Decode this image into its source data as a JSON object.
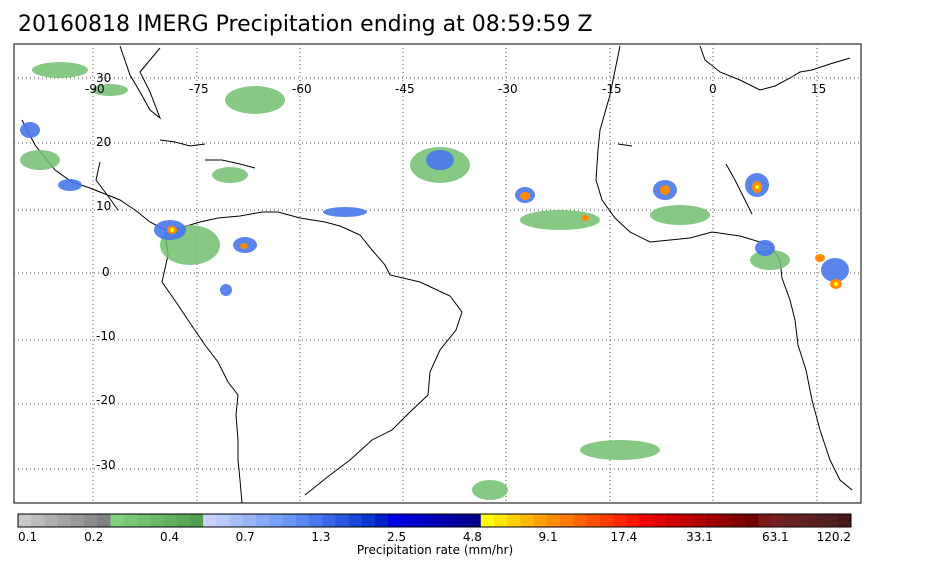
{
  "title": "20160818 IMERG Precipitation ending at 08:59:59 Z",
  "map": {
    "lon_labels": [
      "-90",
      "-75",
      "-60",
      "-45",
      "-30",
      "-15",
      "0",
      "15"
    ],
    "lat_labels": [
      "30",
      "20",
      "10",
      "0",
      "-10",
      "-20",
      "-30"
    ]
  },
  "colorbar": {
    "label": "Precipitation rate (mm/hr)",
    "tick_labels": [
      "0.1",
      "0.2",
      "0.4",
      "0.7",
      "1.3",
      "2.5",
      "4.8",
      "9.1",
      "17.4",
      "33.1",
      "63.1",
      "120.2"
    ],
    "colors": [
      "#c8c8c8",
      "#bcbcbc",
      "#b0b0b0",
      "#a4a4a4",
      "#989898",
      "#8c8c8c",
      "#808080",
      "#80d080",
      "#78c878",
      "#70c070",
      "#68b868",
      "#60b060",
      "#58a858",
      "#50a050",
      "#c8d0f8",
      "#b8c8f8",
      "#a8bef8",
      "#98b4f8",
      "#88aaf8",
      "#78a0f8",
      "#6896f4",
      "#5888f0",
      "#4878ec",
      "#3868e8",
      "#2858e0",
      "#1848d8",
      "#0838d0",
      "#0020c8",
      "#0000e8",
      "#0000d8",
      "#0000c8",
      "#0000b8",
      "#0000a8",
      "#000098",
      "#000088",
      "#ffff00",
      "#ffe800",
      "#ffd000",
      "#ffb800",
      "#ffa000",
      "#ff8c00",
      "#ff7800",
      "#ff6400",
      "#ff5000",
      "#ff3c00",
      "#ff2800",
      "#ff1400",
      "#f00000",
      "#e00000",
      "#d00000",
      "#c00000",
      "#b00000",
      "#a00000",
      "#900000",
      "#800000",
      "#700000",
      "#781818",
      "#702020",
      "#682020",
      "#602020",
      "#582020",
      "#502020",
      "#481818"
    ]
  }
}
